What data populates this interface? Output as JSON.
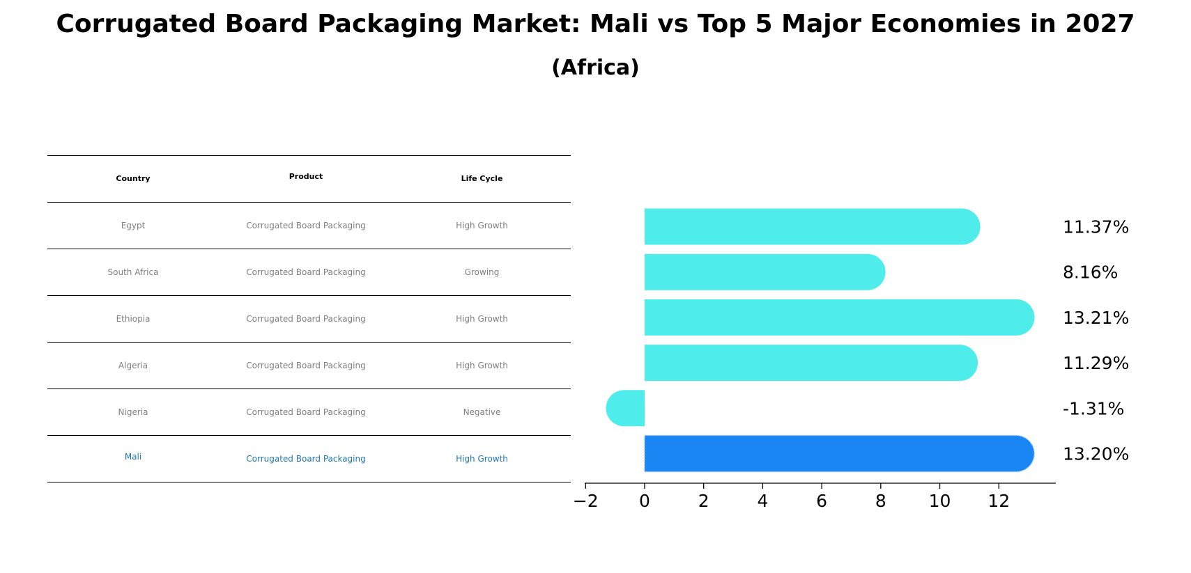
{
  "title": "Corrugated Board Packaging Market: Mali vs Top 5 Major Economies in 2027",
  "subtitle": "(Africa)",
  "table": {
    "headers": [
      "Country",
      "Product",
      "Life Cycle"
    ],
    "rows": [
      {
        "country": "Egypt",
        "product": "Corrugated Board Packaging",
        "life_cycle": "High Growth"
      },
      {
        "country": "South Africa",
        "product": "Corrugated Board Packaging",
        "life_cycle": "Growing"
      },
      {
        "country": "Ethiopia",
        "product": "Corrugated Board Packaging",
        "life_cycle": "High Growth"
      },
      {
        "country": "Algeria",
        "product": "Corrugated Board Packaging",
        "life_cycle": "High Growth"
      },
      {
        "country": "Nigeria",
        "product": "Corrugated Board Packaging",
        "life_cycle": "Negative"
      },
      {
        "country": "Mali",
        "product": "Corrugated Board Packaging",
        "life_cycle": "High Growth"
      }
    ],
    "highlight_color": "#1f77b4"
  },
  "chart_data": {
    "type": "bar",
    "orientation": "horizontal",
    "categories": [
      "Egypt",
      "South Africa",
      "Ethiopia",
      "Algeria",
      "Nigeria",
      "Mali"
    ],
    "values": [
      11.37,
      8.16,
      13.21,
      11.29,
      -1.31,
      13.2
    ],
    "value_labels": [
      "11.37%",
      "8.16%",
      "13.21%",
      "11.29%",
      "-1.31%",
      "13.20%"
    ],
    "colors": [
      "#4eecea",
      "#4eecea",
      "#4eecea",
      "#4eecea",
      "#4eecea",
      "#1a86f4"
    ],
    "highlight": "Mali",
    "xticks": [
      -2,
      0,
      2,
      4,
      6,
      8,
      10,
      12
    ],
    "xtick_labels": [
      "−2",
      "0",
      "2",
      "4",
      "6",
      "8",
      "10",
      "12"
    ],
    "xlim": [
      -2.03,
      13.93
    ],
    "grid": false
  }
}
